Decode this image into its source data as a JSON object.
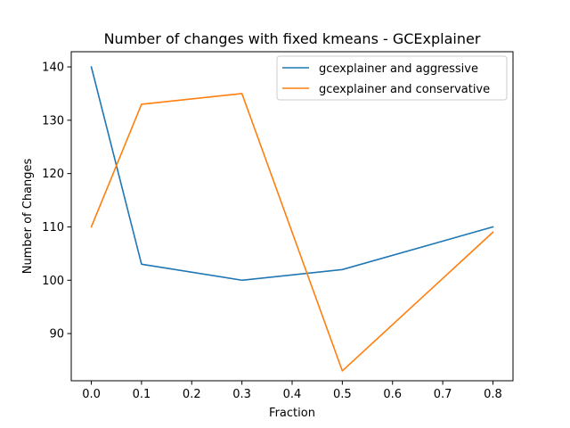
{
  "chart_data": {
    "type": "line",
    "title": "Number of changes with fixed kmeans - GCExplainer",
    "xlabel": "Fraction",
    "ylabel": "Number of Changes",
    "x_ticks": [
      "0.0",
      "0.1",
      "0.2",
      "0.3",
      "0.4",
      "0.5",
      "0.6",
      "0.7",
      "0.8"
    ],
    "y_ticks": [
      "90",
      "100",
      "110",
      "120",
      "130",
      "140"
    ],
    "xlim": [
      -0.04,
      0.84
    ],
    "ylim": [
      81.15,
      142.85
    ],
    "grid": false,
    "legend_position": "top-right",
    "series": [
      {
        "name": "gcexplainer and aggressive",
        "color": "#1f77b4",
        "x": [
          0.0,
          0.1,
          0.3,
          0.5,
          0.8
        ],
        "y": [
          140,
          103,
          100,
          102,
          110
        ]
      },
      {
        "name": "gcexplainer and conservative",
        "color": "#ff7f0e",
        "x": [
          0.0,
          0.1,
          0.3,
          0.5,
          0.8
        ],
        "y": [
          110,
          133,
          135,
          83,
          109
        ]
      }
    ]
  }
}
